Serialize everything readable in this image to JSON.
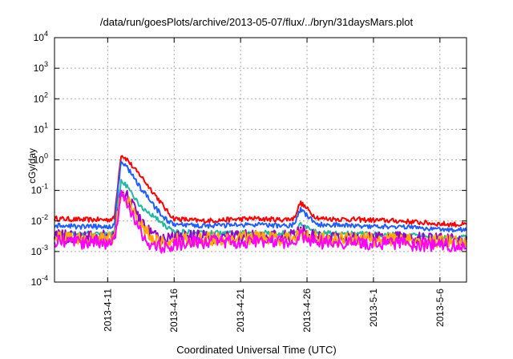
{
  "chart_data": {
    "type": "line",
    "title": "/data/run/goesPlots/archive/2013-05-07/flux/../bryn/31daysMars.plot",
    "xlabel": "Coordinated Universal Time (UTC)",
    "ylabel": "cGy/day",
    "yscale": "log",
    "ylim": [
      0.0001,
      10000
    ],
    "y_ticks": [
      {
        "value": 0.0001,
        "base": "10",
        "exp": "-4"
      },
      {
        "value": 0.001,
        "base": "10",
        "exp": "-3"
      },
      {
        "value": 0.01,
        "base": "10",
        "exp": "-2"
      },
      {
        "value": 0.1,
        "base": "10",
        "exp": "-1"
      },
      {
        "value": 1,
        "base": "10",
        "exp": "0"
      },
      {
        "value": 10,
        "base": "10",
        "exp": "1"
      },
      {
        "value": 100,
        "base": "10",
        "exp": "2"
      },
      {
        "value": 1000,
        "base": "10",
        "exp": "3"
      },
      {
        "value": 10000,
        "base": "10",
        "exp": "4"
      }
    ],
    "xlim": [
      "2013-04-07",
      "2013-05-08"
    ],
    "x_ticks": [
      {
        "date": "2013-04-11",
        "label": "2013-4-11"
      },
      {
        "date": "2013-04-16",
        "label": "2013-4-16"
      },
      {
        "date": "2013-04-21",
        "label": "2013-4-21"
      },
      {
        "date": "2013-04-26",
        "label": "2013-4-26"
      },
      {
        "date": "2013-05-01",
        "label": "2013-5-1"
      },
      {
        "date": "2013-05-06",
        "label": "2013-5-6"
      }
    ],
    "grid": true,
    "series": [
      {
        "color": "#ff0000",
        "points": [
          [
            "2013-04-07",
            0.012
          ],
          [
            "2013-04-09",
            0.011
          ],
          [
            "2013-04-11",
            0.011
          ],
          [
            "2013-04-11T12:00",
            0.012
          ],
          [
            "2013-04-12",
            1.5
          ],
          [
            "2013-04-12T12:00",
            1.0
          ],
          [
            "2013-04-13",
            0.5
          ],
          [
            "2013-04-13T12:00",
            0.3
          ],
          [
            "2013-04-14",
            0.15
          ],
          [
            "2013-04-14T12:00",
            0.08
          ],
          [
            "2013-04-15",
            0.04
          ],
          [
            "2013-04-15T12:00",
            0.02
          ],
          [
            "2013-04-16",
            0.012
          ],
          [
            "2013-04-18",
            0.01
          ],
          [
            "2013-04-20",
            0.011
          ],
          [
            "2013-04-22",
            0.012
          ],
          [
            "2013-04-24",
            0.011
          ],
          [
            "2013-04-25",
            0.012
          ],
          [
            "2013-04-25T12:00",
            0.04
          ],
          [
            "2013-04-26",
            0.025
          ],
          [
            "2013-04-26T12:00",
            0.015
          ],
          [
            "2013-04-27",
            0.012
          ],
          [
            "2013-04-30",
            0.011
          ],
          [
            "2013-05-03",
            0.01
          ],
          [
            "2013-05-06",
            0.008
          ],
          [
            "2013-05-08",
            0.0075
          ]
        ]
      },
      {
        "color": "#1f5fff",
        "points": [
          [
            "2013-04-07",
            0.007
          ],
          [
            "2013-04-09",
            0.0065
          ],
          [
            "2013-04-11",
            0.0065
          ],
          [
            "2013-04-11T12:00",
            0.007
          ],
          [
            "2013-04-12",
            0.9
          ],
          [
            "2013-04-12T12:00",
            0.55
          ],
          [
            "2013-04-13",
            0.25
          ],
          [
            "2013-04-13T12:00",
            0.12
          ],
          [
            "2013-04-14",
            0.06
          ],
          [
            "2013-04-14T12:00",
            0.03
          ],
          [
            "2013-04-15",
            0.017
          ],
          [
            "2013-04-15T12:00",
            0.01
          ],
          [
            "2013-04-16",
            0.0075
          ],
          [
            "2013-04-18",
            0.007
          ],
          [
            "2013-04-20",
            0.0072
          ],
          [
            "2013-04-22",
            0.0075
          ],
          [
            "2013-04-24",
            0.007
          ],
          [
            "2013-04-25",
            0.0075
          ],
          [
            "2013-04-25T12:00",
            0.025
          ],
          [
            "2013-04-26",
            0.015
          ],
          [
            "2013-04-26T12:00",
            0.009
          ],
          [
            "2013-04-27",
            0.0075
          ],
          [
            "2013-04-30",
            0.007
          ],
          [
            "2013-05-03",
            0.0065
          ],
          [
            "2013-05-06",
            0.0055
          ],
          [
            "2013-05-08",
            0.005
          ]
        ]
      },
      {
        "color": "#20b8a0",
        "points": [
          [
            "2013-04-07",
            0.004
          ],
          [
            "2013-04-09",
            0.0038
          ],
          [
            "2013-04-11",
            0.0038
          ],
          [
            "2013-04-11T12:00",
            0.004
          ],
          [
            "2013-04-12",
            0.2
          ],
          [
            "2013-04-12T12:00",
            0.13
          ],
          [
            "2013-04-13",
            0.06
          ],
          [
            "2013-04-13T12:00",
            0.03
          ],
          [
            "2013-04-14",
            0.02
          ],
          [
            "2013-04-14T12:00",
            0.014
          ],
          [
            "2013-04-15",
            0.009
          ],
          [
            "2013-04-15T12:00",
            0.006
          ],
          [
            "2013-04-16",
            0.0045
          ],
          [
            "2013-04-18",
            0.0042
          ],
          [
            "2013-04-20",
            0.004
          ],
          [
            "2013-04-22",
            0.0042
          ],
          [
            "2013-04-24",
            0.004
          ],
          [
            "2013-04-25",
            0.0042
          ],
          [
            "2013-04-25T12:00",
            0.008
          ],
          [
            "2013-04-26",
            0.006
          ],
          [
            "2013-04-26T12:00",
            0.0045
          ],
          [
            "2013-04-27",
            0.004
          ],
          [
            "2013-04-30",
            0.0038
          ],
          [
            "2013-05-03",
            0.0035
          ],
          [
            "2013-05-06",
            0.003
          ],
          [
            "2013-05-08",
            0.0028
          ]
        ]
      },
      {
        "color": "#9900cc",
        "points": [
          [
            "2013-04-07",
            0.0032
          ],
          [
            "2013-04-09",
            0.003
          ],
          [
            "2013-04-11",
            0.003
          ],
          [
            "2013-04-11T12:00",
            0.0032
          ],
          [
            "2013-04-12",
            0.1
          ],
          [
            "2013-04-12T12:00",
            0.06
          ],
          [
            "2013-04-13",
            0.025
          ],
          [
            "2013-04-13T12:00",
            0.01
          ],
          [
            "2013-04-14",
            0.005
          ],
          [
            "2013-04-14T12:00",
            0.003
          ],
          [
            "2013-04-15",
            0.0025
          ],
          [
            "2013-04-15T12:00",
            0.0025
          ],
          [
            "2013-04-16",
            0.0028
          ],
          [
            "2013-04-18",
            0.003
          ],
          [
            "2013-04-20",
            0.003
          ],
          [
            "2013-04-22",
            0.0032
          ],
          [
            "2013-04-24",
            0.003
          ],
          [
            "2013-04-25",
            0.0032
          ],
          [
            "2013-04-25T12:00",
            0.005
          ],
          [
            "2013-04-26",
            0.004
          ],
          [
            "2013-04-26T12:00",
            0.0033
          ],
          [
            "2013-04-27",
            0.003
          ],
          [
            "2013-04-30",
            0.0029
          ],
          [
            "2013-05-03",
            0.0027
          ],
          [
            "2013-05-06",
            0.0024
          ],
          [
            "2013-05-08",
            0.0022
          ]
        ]
      },
      {
        "color": "#ffaa00",
        "points": [
          [
            "2013-04-07",
            0.0028
          ],
          [
            "2013-04-09",
            0.0026
          ],
          [
            "2013-04-11",
            0.0026
          ],
          [
            "2013-04-11T12:00",
            0.0028
          ],
          [
            "2013-04-12",
            0.08
          ],
          [
            "2013-04-12T12:00",
            0.05
          ],
          [
            "2013-04-13",
            0.02
          ],
          [
            "2013-04-13T12:00",
            0.008
          ],
          [
            "2013-04-14",
            0.004
          ],
          [
            "2013-04-14T12:00",
            0.0025
          ],
          [
            "2013-04-15",
            0.002
          ],
          [
            "2013-04-15T12:00",
            0.002
          ],
          [
            "2013-04-16",
            0.0024
          ],
          [
            "2013-04-18",
            0.0026
          ],
          [
            "2013-04-20",
            0.0026
          ],
          [
            "2013-04-22",
            0.0028
          ],
          [
            "2013-04-24",
            0.0026
          ],
          [
            "2013-04-25",
            0.0028
          ],
          [
            "2013-04-25T12:00",
            0.0045
          ],
          [
            "2013-04-26",
            0.0035
          ],
          [
            "2013-04-26T12:00",
            0.0029
          ],
          [
            "2013-04-27",
            0.0026
          ],
          [
            "2013-04-30",
            0.0025
          ],
          [
            "2013-05-03",
            0.0024
          ],
          [
            "2013-05-06",
            0.0021
          ],
          [
            "2013-05-08",
            0.002
          ]
        ]
      },
      {
        "color": "#ff00ff",
        "points": [
          [
            "2013-04-07",
            0.0022
          ],
          [
            "2013-04-09",
            0.002
          ],
          [
            "2013-04-11",
            0.002
          ],
          [
            "2013-04-11T12:00",
            0.0022
          ],
          [
            "2013-04-12",
            0.07
          ],
          [
            "2013-04-12T12:00",
            0.04
          ],
          [
            "2013-04-13",
            0.012
          ],
          [
            "2013-04-13T12:00",
            0.004
          ],
          [
            "2013-04-14",
            0.002
          ],
          [
            "2013-04-14T12:00",
            0.0015
          ],
          [
            "2013-04-15",
            0.0014
          ],
          [
            "2013-04-15T12:00",
            0.0015
          ],
          [
            "2013-04-16",
            0.0018
          ],
          [
            "2013-04-18",
            0.002
          ],
          [
            "2013-04-20",
            0.0021
          ],
          [
            "2013-04-22",
            0.0022
          ],
          [
            "2013-04-24",
            0.002
          ],
          [
            "2013-04-25",
            0.0021
          ],
          [
            "2013-04-25T12:00",
            0.0035
          ],
          [
            "2013-04-26",
            0.0026
          ],
          [
            "2013-04-26T12:00",
            0.0021
          ],
          [
            "2013-04-27",
            0.002
          ],
          [
            "2013-04-30",
            0.0019
          ],
          [
            "2013-05-03",
            0.0018
          ],
          [
            "2013-05-06",
            0.0016
          ],
          [
            "2013-05-08",
            0.0015
          ]
        ]
      }
    ]
  }
}
